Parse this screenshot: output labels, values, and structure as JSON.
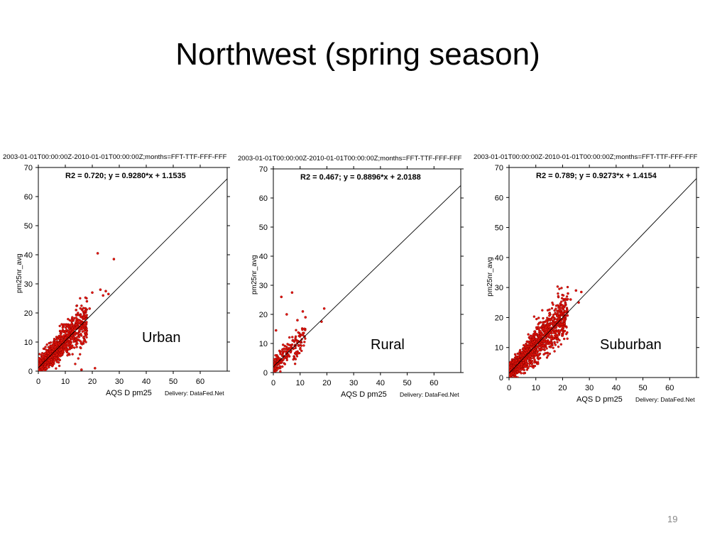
{
  "slide": {
    "title": "Northwest (spring season)",
    "page_number": "19"
  },
  "chart_data": [
    {
      "type": "scatter",
      "header": "2003-01-01T00:00:00Z-2010-01-01T00:00:00Z;months=FFT-TTF-FFF-FFF",
      "ylabel": "pm25nr_avg",
      "xlabel": "AQS  D  pm25",
      "credit": "Delivery: DataFed.Net",
      "stats": "R2 = 0.720; y = 0.9280*x + 1.1535",
      "fit": {
        "slope": 0.928,
        "intercept": 1.1535
      },
      "caption": "Urban",
      "xlim": [
        0,
        70
      ],
      "ylim": [
        0,
        70
      ],
      "xticks": [
        0,
        10,
        20,
        30,
        40,
        50,
        60
      ],
      "yticks": [
        0,
        10,
        20,
        30,
        40,
        50,
        60,
        70
      ],
      "point_color": "#e8140a",
      "point_count": 1200,
      "x_range_dense": [
        0,
        18
      ],
      "points": [
        [
          22,
          40.5
        ],
        [
          28,
          38.5
        ],
        [
          20,
          27
        ],
        [
          23,
          28
        ],
        [
          25,
          27.5
        ],
        [
          26,
          26.5
        ],
        [
          18,
          24
        ],
        [
          14,
          21
        ],
        [
          19,
          21.5
        ],
        [
          24,
          26
        ],
        [
          21,
          1
        ],
        [
          16,
          0.5
        ]
      ]
    },
    {
      "type": "scatter",
      "header": "2003-01-01T00:00:00Z-2010-01-01T00:00:00Z;months=FFT-TTF-FFF-FFF",
      "ylabel": "pm25nr_avg",
      "xlabel": "AQS  D  pm25",
      "credit": "Delivery: DataFed.Net",
      "stats": "R2 = 0.467; y = 0.8896*x + 2.0188",
      "fit": {
        "slope": 0.8896,
        "intercept": 2.0188
      },
      "caption": "Rural",
      "xlim": [
        0,
        70
      ],
      "ylim": [
        0,
        70
      ],
      "xticks": [
        0,
        10,
        20,
        30,
        40,
        50,
        60
      ],
      "yticks": [
        0,
        10,
        20,
        30,
        40,
        50,
        60,
        70
      ],
      "point_color": "#e8140a",
      "point_count": 220,
      "x_range_dense": [
        0,
        12
      ],
      "points": [
        [
          3,
          26
        ],
        [
          7,
          27.5
        ],
        [
          19,
          22
        ],
        [
          11,
          21
        ],
        [
          12,
          19
        ],
        [
          9,
          18
        ],
        [
          18,
          17.5
        ],
        [
          5,
          20
        ],
        [
          1,
          14.5
        ]
      ]
    },
    {
      "type": "scatter",
      "header": "2003-01-01T00:00:00Z-2010-01-01T00:00:00Z;months=FFT-TTF-FFF-FFF",
      "ylabel": "pm25nr_avg",
      "xlabel": "AQS  D  pm25",
      "credit": "Delivery: DataFed.Net",
      "stats": "R2 = 0.789; y = 0.9273*x + 1.4154",
      "fit": {
        "slope": 0.9273,
        "intercept": 1.4154
      },
      "caption": "Suburban",
      "xlim": [
        0,
        70
      ],
      "ylim": [
        0,
        70
      ],
      "xticks": [
        0,
        10,
        20,
        30,
        40,
        50,
        60
      ],
      "yticks": [
        0,
        10,
        20,
        30,
        40,
        50,
        60,
        70
      ],
      "point_color": "#e8140a",
      "point_count": 1400,
      "x_range_dense": [
        0,
        22
      ],
      "points": [
        [
          22,
          28
        ],
        [
          25,
          29
        ],
        [
          27,
          28.5
        ],
        [
          23,
          26
        ],
        [
          26,
          25
        ],
        [
          20,
          24
        ],
        [
          21,
          22
        ],
        [
          18,
          20.5
        ]
      ]
    }
  ]
}
